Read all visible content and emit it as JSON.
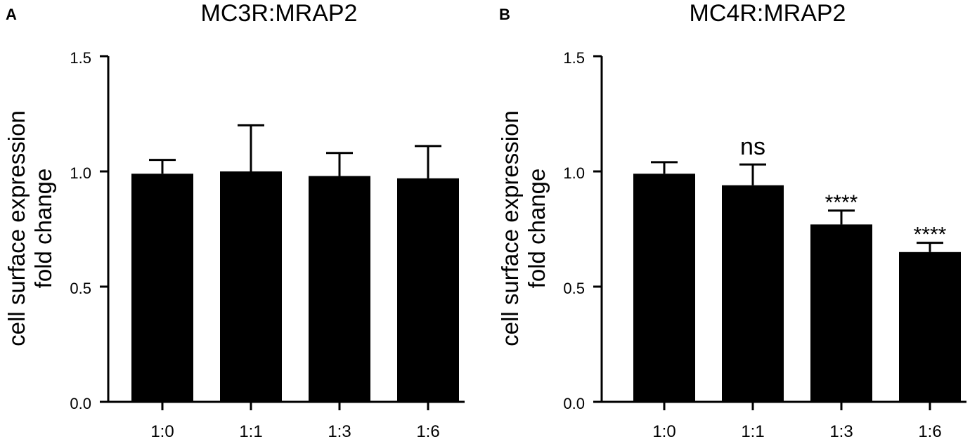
{
  "panels": [
    {
      "letter": "A",
      "title": "MC3R:MRAP2",
      "ylabel_line1": "cell surface expression",
      "ylabel_line2": "fold change",
      "yticks": [
        "0.0",
        "0.5",
        "1.0",
        "1.5"
      ]
    },
    {
      "letter": "B",
      "title": "MC4R:MRAP2",
      "ylabel_line1": "cell surface expression",
      "ylabel_line2": "fold change",
      "yticks": [
        "0.0",
        "0.5",
        "1.0",
        "1.5"
      ]
    }
  ],
  "chart_data": [
    {
      "type": "bar",
      "title": "MC3R:MRAP2",
      "ylabel": "cell surface expression fold change",
      "xlabel": "",
      "ylim": [
        0,
        1.5
      ],
      "yticks": [
        0.0,
        0.5,
        1.0,
        1.5
      ],
      "categories": [
        "1:0",
        "1:1",
        "1:3",
        "1:6"
      ],
      "values": [
        0.99,
        1.0,
        0.98,
        0.97
      ],
      "error_upper": [
        1.05,
        1.2,
        1.08,
        1.11
      ],
      "annotations": [
        "",
        "",
        "",
        ""
      ],
      "bar_color": "#000000",
      "grid": false
    },
    {
      "type": "bar",
      "title": "MC4R:MRAP2",
      "ylabel": "cell surface expression fold change",
      "xlabel": "",
      "ylim": [
        0,
        1.5
      ],
      "yticks": [
        0.0,
        0.5,
        1.0,
        1.5
      ],
      "categories": [
        "1:0",
        "1:1",
        "1:3",
        "1:6"
      ],
      "values": [
        0.99,
        0.94,
        0.77,
        0.65
      ],
      "error_upper": [
        1.04,
        1.03,
        0.83,
        0.69
      ],
      "annotations": [
        "",
        "ns",
        "****",
        "****"
      ],
      "bar_color": "#000000",
      "grid": false
    }
  ]
}
